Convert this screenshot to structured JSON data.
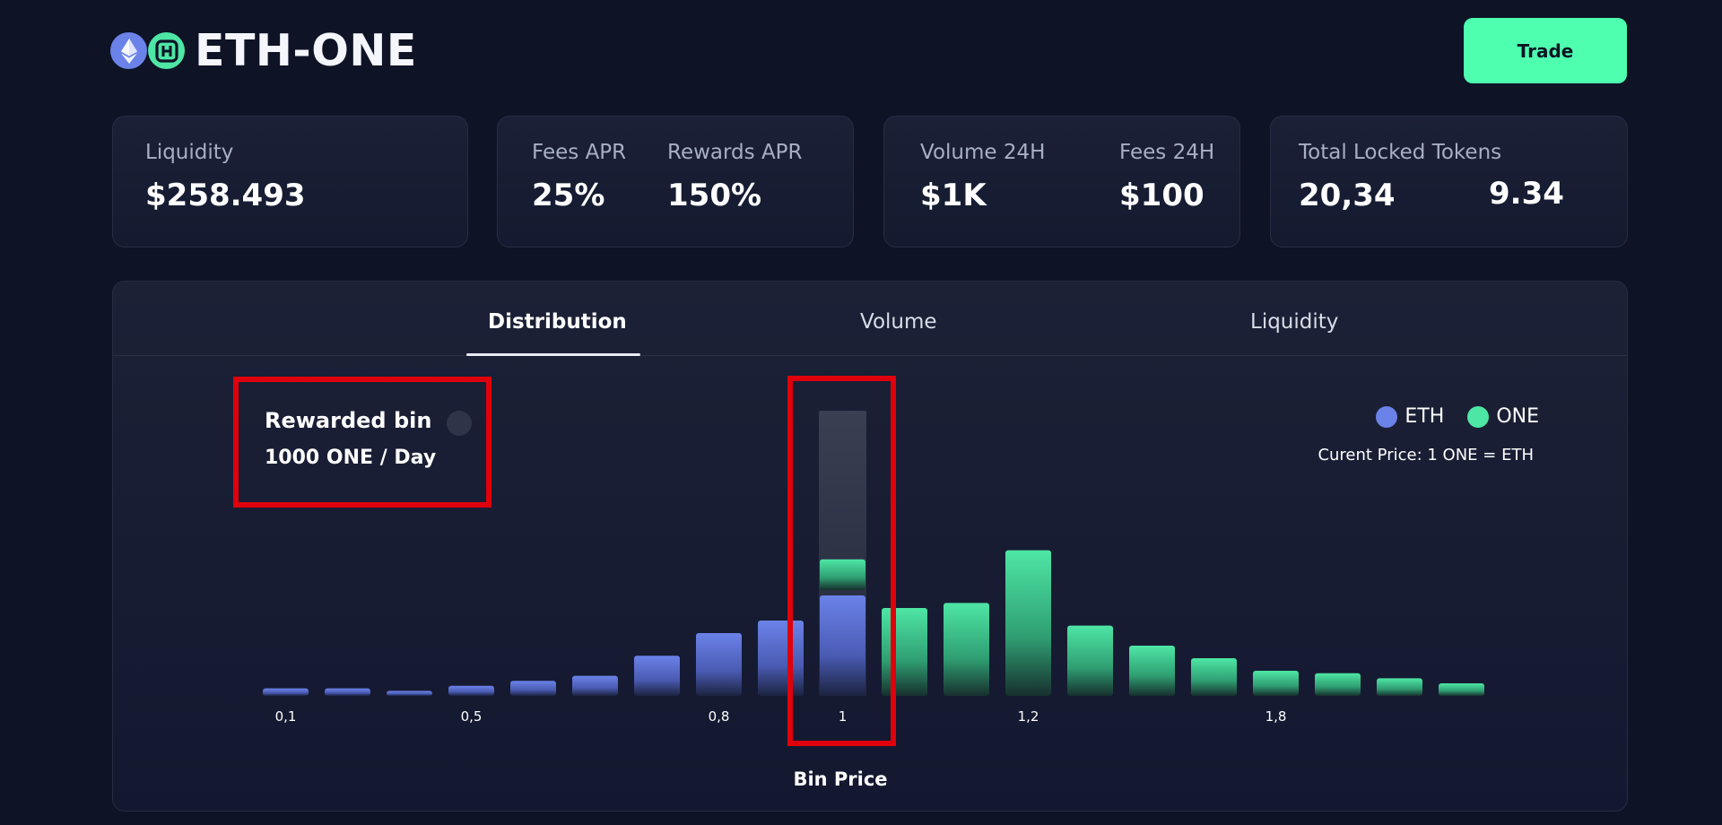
{
  "header": {
    "pair_title": "ETH-ONE",
    "eth_icon": "ethereum-icon",
    "one_icon": "harmony-one-icon",
    "trade_label": "Trade"
  },
  "stats": {
    "liquidity": {
      "label": "Liquidity",
      "value": "$258.493"
    },
    "fees_apr": {
      "label": "Fees APR",
      "value": "25%"
    },
    "rewards_apr": {
      "label": "Rewards APR",
      "value": "150%"
    },
    "volume_24h": {
      "label": "Volume 24H",
      "value": "$1K"
    },
    "fees_24h": {
      "label": "Fees 24H",
      "value": "$100"
    },
    "total_locked": {
      "label": "Total Locked Tokens",
      "value_eth": "20,34",
      "value_one": "9.34"
    }
  },
  "tabs": [
    {
      "label": "Distribution",
      "active": true
    },
    {
      "label": "Volume",
      "active": false
    },
    {
      "label": "Liquidity",
      "active": false
    }
  ],
  "reward": {
    "title": "Rewarded bin",
    "subtitle": "1000 ONE / Day"
  },
  "legend": [
    {
      "label": "ETH",
      "color": "#6b82e8"
    },
    {
      "label": "ONE",
      "color": "#4ee6a5"
    }
  ],
  "current_price": "Curent Price: 1 ONE = ETH",
  "colors": {
    "accent": "#4effaf",
    "eth": "#6b82e8",
    "one": "#4ee6a5",
    "highlight": "#e0000b"
  },
  "chart_data": {
    "type": "bar",
    "xlabel": "Bin Price",
    "ylabel": "",
    "ylim": [
      0,
      100
    ],
    "highlighted_bin": 1,
    "tick_labels": [
      {
        "bin": 0,
        "label": "0,1"
      },
      {
        "bin": 3,
        "label": "0,5"
      },
      {
        "bin": 7,
        "label": "0,8"
      },
      {
        "bin": 9,
        "label": "1"
      },
      {
        "bin": 12,
        "label": "1,2"
      },
      {
        "bin": 16,
        "label": "1,8"
      }
    ],
    "series": [
      {
        "name": "ETH",
        "values": [
          3,
          3,
          2,
          4,
          6,
          8,
          16,
          25,
          30,
          40,
          0,
          0,
          0,
          0,
          0,
          0,
          0,
          0,
          0,
          0
        ]
      },
      {
        "name": "ONE",
        "values": [
          0,
          0,
          0,
          0,
          0,
          0,
          0,
          0,
          0,
          34,
          35,
          37,
          58,
          28,
          20,
          15,
          10,
          9,
          7,
          5
        ]
      }
    ],
    "rewarded_bin_capacity": 12
  }
}
